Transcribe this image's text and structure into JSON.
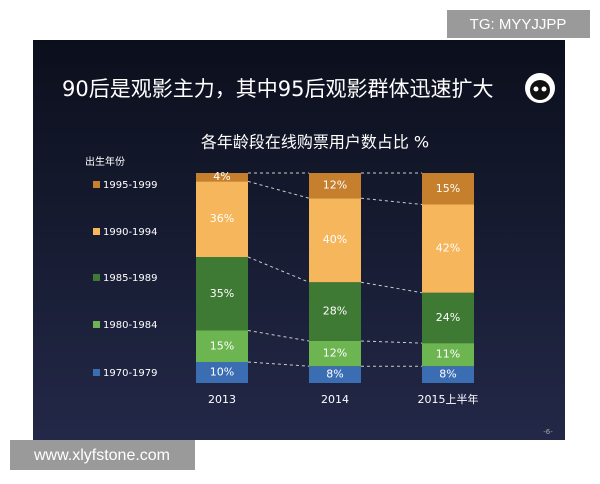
{
  "chart_data": {
    "type": "bar",
    "stacked": true,
    "title": "90后是观影主力，其中95后观影群体迅速扩大",
    "subtitle": "各年龄段在线购票用户数占比 %",
    "legend_title": "出生年份",
    "watermark": "TG: MYYJJPP",
    "footer_url": "www.xlyfstone.com",
    "page_number": "-6-",
    "categories": [
      "2013",
      "2014",
      "2015上半年"
    ],
    "ylim": [
      0,
      100
    ],
    "series": [
      {
        "name": "1970-1979",
        "color": "#3b6db3",
        "values": [
          10,
          8,
          8
        ],
        "value_labels": [
          "10%",
          "8%",
          "8%"
        ]
      },
      {
        "name": "1980-1984",
        "color": "#6cb550",
        "values": [
          15,
          12,
          11
        ],
        "value_labels": [
          "15%",
          "12%",
          "11%"
        ]
      },
      {
        "name": "1985-1989",
        "color": "#3e7a34",
        "values": [
          35,
          28,
          24
        ],
        "value_labels": [
          "35%",
          "28%",
          "24%"
        ]
      },
      {
        "name": "1990-1994",
        "color": "#f6b65c",
        "values": [
          36,
          40,
          42
        ],
        "value_labels": [
          "36%",
          "40%",
          "42%"
        ]
      },
      {
        "name": "1995-1999",
        "color": "#c67f2c",
        "values": [
          4,
          12,
          15
        ],
        "value_labels": [
          "4%",
          "12%",
          "15%"
        ]
      }
    ]
  }
}
